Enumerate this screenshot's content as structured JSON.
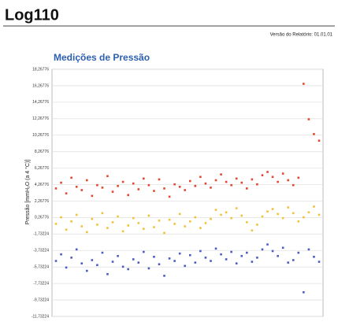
{
  "header": {
    "title": "Log110",
    "version": "Versão do Relatório: 01.01.01"
  },
  "chart_data": {
    "type": "scatter",
    "title": "Medições de Pressão",
    "y_label": "Pressão [mmH₂O (a 4 °C)]",
    "ylim": [
      -11.73224,
      18.26776
    ],
    "yticks": [
      {
        "value": 18.26776,
        "label": "18,26776"
      },
      {
        "value": 16.26776,
        "label": "16,26776"
      },
      {
        "value": 14.26776,
        "label": "14,26776"
      },
      {
        "value": 12.26776,
        "label": "12,26776"
      },
      {
        "value": 10.26776,
        "label": "10,26776"
      },
      {
        "value": 8.26776,
        "label": "8,26776"
      },
      {
        "value": 6.26776,
        "label": "6,26776"
      },
      {
        "value": 4.26776,
        "label": "4,26776"
      },
      {
        "value": 2.26776,
        "label": "2,26776"
      },
      {
        "value": 0.26776,
        "label": "0,26776"
      },
      {
        "value": -1.73224,
        "label": "-1,73224"
      },
      {
        "value": -3.73224,
        "label": "-3,73224"
      },
      {
        "value": -5.73224,
        "label": "-5,73224"
      },
      {
        "value": -7.73224,
        "label": "-7,73224"
      },
      {
        "value": -9.73224,
        "label": "-9,73224"
      },
      {
        "value": -11.73224,
        "label": "-11,73224"
      }
    ],
    "grid": true,
    "series": [
      {
        "color": "#e2472f",
        "values": [
          3.8,
          4.5,
          3.2,
          5.1,
          4.0,
          3.6,
          4.8,
          2.9,
          4.2,
          3.9,
          5.3,
          3.4,
          4.1,
          4.6,
          3.0,
          4.4,
          3.7,
          5.0,
          4.2,
          3.5,
          4.9,
          3.8,
          2.8,
          4.3,
          4.0,
          3.6,
          4.7,
          4.1,
          5.2,
          4.4,
          3.9,
          4.8,
          5.5,
          4.6,
          4.2,
          5.0,
          4.5,
          3.8,
          4.9,
          4.3,
          5.4,
          5.8,
          5.2,
          4.6,
          5.6,
          4.8,
          4.2,
          5.1,
          16.5,
          12.2,
          10.4,
          9.6
        ]
      },
      {
        "color": "#f1c13b",
        "values": [
          -0.5,
          0.3,
          -1.2,
          -0.2,
          0.6,
          -0.8,
          -1.5,
          0.1,
          -0.6,
          0.8,
          -1.0,
          -0.3,
          0.4,
          -1.4,
          -0.7,
          0.2,
          -0.4,
          -1.1,
          0.5,
          -0.9,
          -0.1,
          -1.6,
          0.0,
          -0.5,
          0.7,
          -0.8,
          -0.2,
          0.3,
          -1.0,
          -0.4,
          0.1,
          1.2,
          0.6,
          0.9,
          0.2,
          1.4,
          0.5,
          -0.3,
          -1.3,
          -0.6,
          0.4,
          1.0,
          1.3,
          0.7,
          0.2,
          1.5,
          0.8,
          -0.2,
          0.3,
          0.9,
          1.6,
          0.6
        ]
      },
      {
        "color": "#4b5cc2",
        "values": [
          -5.0,
          -4.2,
          -5.8,
          -4.6,
          -3.6,
          -5.3,
          -6.2,
          -4.9,
          -5.5,
          -4.0,
          -6.6,
          -5.1,
          -4.4,
          -5.7,
          -6.0,
          -4.8,
          -5.2,
          -3.9,
          -5.9,
          -4.5,
          -5.4,
          -6.8,
          -4.7,
          -5.0,
          -4.1,
          -5.6,
          -4.3,
          -5.2,
          -3.8,
          -4.6,
          -5.0,
          -3.5,
          -4.2,
          -4.8,
          -3.9,
          -5.3,
          -4.4,
          -4.0,
          -5.1,
          -4.6,
          -3.6,
          -3.0,
          -3.8,
          -4.4,
          -3.4,
          -5.2,
          -4.9,
          -4.0,
          -8.8,
          -3.6,
          -4.5,
          -5.1
        ]
      }
    ]
  }
}
